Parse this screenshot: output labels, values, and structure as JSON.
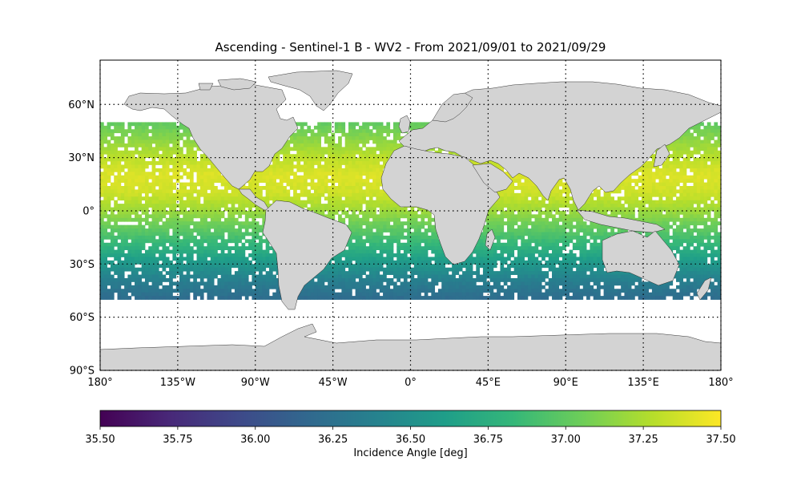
{
  "title": "Ascending - Sentinel-1 B - WV2 - From 2021/09/01 to 2021/09/29",
  "map": {
    "projection": "equirectangular",
    "lon_range": [
      -180,
      180
    ],
    "lat_range": [
      -90,
      85
    ],
    "lat_gridlines": [
      60,
      30,
      0,
      -30,
      -60,
      -90
    ],
    "lon_gridlines": [
      -180,
      -135,
      -90,
      -45,
      0,
      45,
      90,
      135,
      180
    ],
    "lat_tick_labels": [
      "60°N",
      "30°N",
      "0°",
      "30°S",
      "60°S",
      "90°S"
    ],
    "lon_tick_labels": [
      "180°",
      "135°W",
      "90°W",
      "45°W",
      "0°",
      "45°E",
      "90°E",
      "135°E",
      "180°"
    ],
    "gridline_style": "dotted",
    "land_color": "#d3d3d3",
    "ocean_color": "#ffffff"
  },
  "chart_data": {
    "type": "heatmap",
    "title": "Ascending - Sentinel-1 B - WV2 - From 2021/09/01 to 2021/09/29",
    "variable": "Incidence Angle [deg]",
    "colormap": "viridis",
    "vmin": 35.5,
    "vmax": 37.5,
    "coverage_lat_range": [
      -50,
      50
    ],
    "lat_profile": [
      {
        "lat": 50,
        "value": 37.0
      },
      {
        "lat": 40,
        "value": 37.15
      },
      {
        "lat": 30,
        "value": 37.3
      },
      {
        "lat": 20,
        "value": 37.4
      },
      {
        "lat": 10,
        "value": 37.35
      },
      {
        "lat": 0,
        "value": 37.2
      },
      {
        "lat": -10,
        "value": 37.0
      },
      {
        "lat": -20,
        "value": 36.8
      },
      {
        "lat": -30,
        "value": 36.55
      },
      {
        "lat": -40,
        "value": 36.35
      },
      {
        "lat": -50,
        "value": 36.2
      }
    ]
  },
  "colorbar": {
    "label": "Incidence Angle [deg]",
    "ticks": [
      "35.50",
      "35.75",
      "36.00",
      "36.25",
      "36.50",
      "36.75",
      "37.00",
      "37.25",
      "37.50"
    ],
    "stops": [
      "#440154",
      "#482878",
      "#3e4989",
      "#31688e",
      "#26828e",
      "#1f9e89",
      "#35b779",
      "#6ece58",
      "#b5de2b",
      "#fde725"
    ]
  }
}
